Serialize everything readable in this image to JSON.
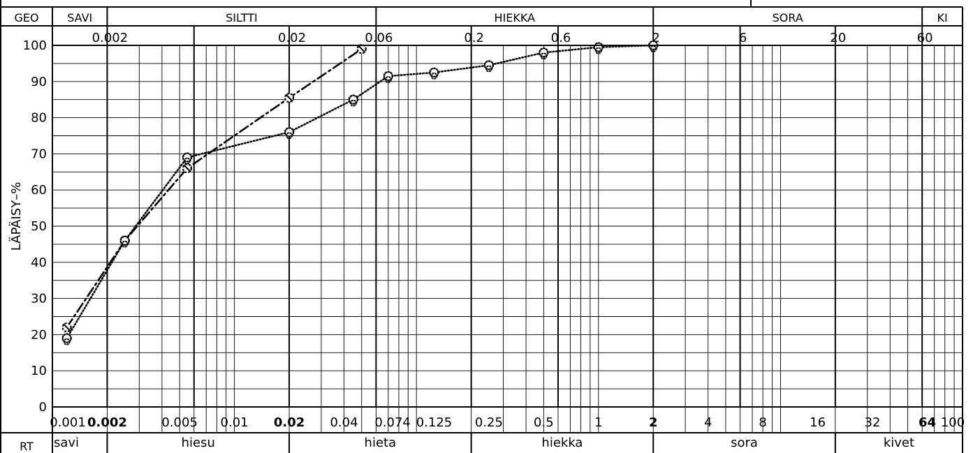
{
  "chart_data": {
    "type": "line",
    "ylabel": "LÄPÄISY–%",
    "x_scale": "log",
    "xlim": [
      0.001,
      100
    ],
    "ylim": [
      0,
      100
    ],
    "grid": true,
    "y_ticks": [
      0,
      10,
      20,
      30,
      40,
      50,
      60,
      70,
      80,
      90,
      100
    ],
    "top_ticks": [
      {
        "value": 0.002,
        "label": "0.002"
      },
      {
        "value": 0.02,
        "label": "0.02"
      },
      {
        "value": 0.06,
        "label": "0.06"
      },
      {
        "value": 0.2,
        "label": "0.2"
      },
      {
        "value": 0.6,
        "label": "0.6"
      },
      {
        "value": 2,
        "label": "2"
      },
      {
        "value": 6,
        "label": "6"
      },
      {
        "value": 20,
        "label": "20"
      },
      {
        "value": 60,
        "label": "60"
      }
    ],
    "bottom_ticks": [
      {
        "value": 0.001,
        "label": "0.001",
        "bold": false
      },
      {
        "value": 0.002,
        "label": "0.002",
        "bold": true
      },
      {
        "value": 0.005,
        "label": "0.005",
        "bold": false
      },
      {
        "value": 0.01,
        "label": "0.01",
        "bold": false
      },
      {
        "value": 0.02,
        "label": "0.02",
        "bold": true
      },
      {
        "value": 0.04,
        "label": "0.04",
        "bold": false
      },
      {
        "value": 0.074,
        "label": "0.074",
        "bold": false
      },
      {
        "value": 0.125,
        "label": "0.125",
        "bold": false
      },
      {
        "value": 0.25,
        "label": "0.25",
        "bold": false
      },
      {
        "value": 0.5,
        "label": "0.5",
        "bold": false
      },
      {
        "value": 1,
        "label": "1",
        "bold": false
      },
      {
        "value": 2,
        "label": "2",
        "bold": true
      },
      {
        "value": 4,
        "label": "4",
        "bold": false
      },
      {
        "value": 8,
        "label": "8",
        "bold": false
      },
      {
        "value": 16,
        "label": "16",
        "bold": false
      },
      {
        "value": 32,
        "label": "32",
        "bold": false
      },
      {
        "value": 64,
        "label": "64",
        "bold": true
      },
      {
        "value": 100,
        "label": "100",
        "bold": false
      }
    ],
    "geo_header": {
      "label": "GEO",
      "bands": [
        {
          "name": "SAVI",
          "from": 0.001,
          "to": 0.002
        },
        {
          "name": "SILTTI",
          "from": 0.002,
          "to": 0.06
        },
        {
          "name": "HIEKKA",
          "from": 0.06,
          "to": 2
        },
        {
          "name": "SORA",
          "from": 2,
          "to": 60
        },
        {
          "name": "KI",
          "from": 60,
          "to": 100
        }
      ]
    },
    "rt_footer": {
      "label": "RT",
      "bands": [
        {
          "name": "savi",
          "from": 0.001,
          "to": 0.002
        },
        {
          "name": "hiesu",
          "from": 0.002,
          "to": 0.02
        },
        {
          "name": "hieta",
          "from": 0.02,
          "to": 0.2
        },
        {
          "name": "hiekka",
          "from": 0.2,
          "to": 2
        },
        {
          "name": "sora",
          "from": 2,
          "to": 20
        },
        {
          "name": "kivet",
          "from": 20,
          "to": 100
        }
      ]
    },
    "series": [
      {
        "style": "dashdot",
        "x": [
          0.0012,
          0.0025,
          0.0055,
          0.02,
          0.05
        ],
        "y": [
          22,
          46,
          66,
          85.5,
          99
        ]
      },
      {
        "style": "dotted",
        "x": [
          0.0012,
          0.0025,
          0.0055,
          0.02,
          0.045,
          0.07,
          0.125,
          0.25,
          0.5,
          1,
          2
        ],
        "y": [
          19,
          46,
          69,
          76,
          85,
          91.5,
          92.5,
          94.5,
          98,
          99.5,
          100
        ]
      }
    ]
  }
}
